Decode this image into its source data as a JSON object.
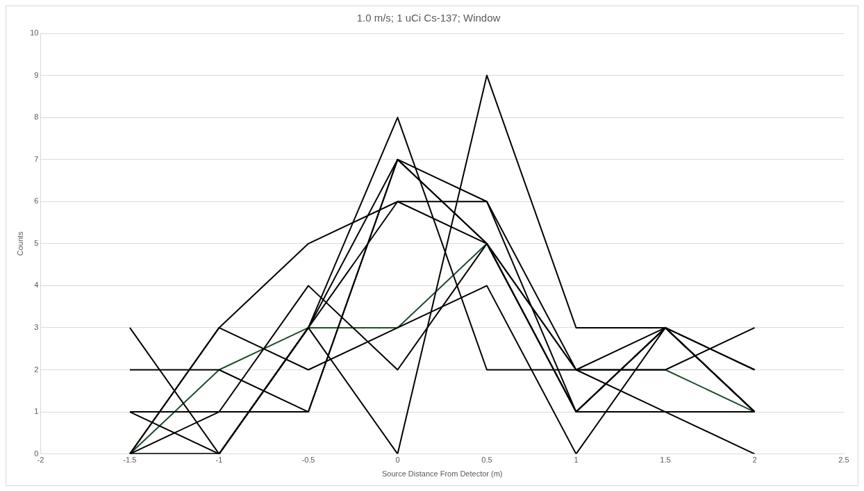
{
  "chart_data": {
    "type": "line",
    "title": "1.0 m/s; 1 uCi Cs-137; Window",
    "xlabel": "Source Distance From Detector (m)",
    "ylabel": "Counts",
    "x": [
      -1.5,
      -1,
      -0.5,
      0,
      0.5,
      1,
      1.5,
      2
    ],
    "xlim": [
      -2,
      2.5
    ],
    "xticks": [
      -2,
      -1.5,
      -1,
      -0.5,
      0,
      0.5,
      1,
      1.5,
      2,
      2.5
    ],
    "ylim": [
      0,
      10
    ],
    "yticks": [
      0,
      1,
      2,
      3,
      4,
      5,
      6,
      7,
      8,
      9,
      10
    ],
    "grid": "y",
    "legend": false,
    "marker": "none",
    "line_style": "solid",
    "series": [
      {
        "color": "#000000",
        "values": [
          3,
          0,
          3,
          7,
          6,
          1,
          3,
          2
        ]
      },
      {
        "color": "#000000",
        "values": [
          2,
          2,
          1,
          7,
          5,
          1,
          3,
          1
        ]
      },
      {
        "color": "#000000",
        "values": [
          1,
          1,
          4,
          2,
          5,
          2,
          2,
          3
        ]
      },
      {
        "color": "#000000",
        "values": [
          1,
          0,
          3,
          6,
          5,
          1,
          1,
          1
        ]
      },
      {
        "color": "#000000",
        "values": [
          0,
          3,
          5,
          6,
          6,
          2,
          1,
          0
        ]
      },
      {
        "color": "#000000",
        "values": [
          0,
          1,
          1,
          7,
          5,
          1,
          3,
          1
        ]
      },
      {
        "color": "#000000",
        "values": [
          0,
          0,
          3,
          8,
          2,
          2,
          3,
          1
        ]
      },
      {
        "color": "#000000",
        "values": [
          0,
          0,
          3,
          0,
          9,
          3,
          3,
          2
        ]
      },
      {
        "color": "#000000",
        "values": [
          0,
          3,
          2,
          3,
          4,
          0,
          3,
          1
        ]
      },
      {
        "color": "#1e4d2b",
        "values": [
          0,
          2,
          3,
          3,
          5,
          2,
          2,
          1
        ]
      }
    ]
  }
}
